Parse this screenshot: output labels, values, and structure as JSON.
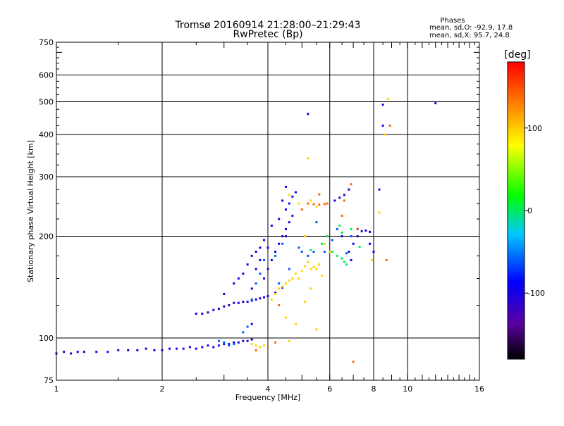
{
  "chart_data": {
    "type": "scatter",
    "title": "Tromsø 20160914 21:28:00–21:29:43",
    "subtitle": "RwPretec (Bp)",
    "xlabel": "Frequency [MHz]",
    "ylabel": "Stationary phase Virtual Height [km]",
    "x_scale": "log",
    "y_scale": "log",
    "xlim": [
      1,
      16
    ],
    "ylim": [
      75,
      750
    ],
    "x_ticks": [
      1,
      2,
      4,
      6,
      8,
      10,
      16
    ],
    "x_tick_labels": [
      "1",
      "2",
      "4",
      "6",
      "8",
      "10",
      "16"
    ],
    "x_grid": [
      2,
      4,
      6,
      8,
      10
    ],
    "y_ticks": [
      75,
      100,
      200,
      300,
      400,
      500,
      600,
      750
    ],
    "y_tick_labels": [
      "75",
      "100",
      "200",
      "300",
      "400",
      "500",
      "600",
      "750"
    ],
    "y_grid": [
      100,
      200,
      300,
      400,
      500,
      600
    ],
    "grid": true,
    "phases_box": {
      "title": "Phases",
      "line_o": "mean, sd,O: -92.9, 17.8",
      "line_x": "mean, sd,X:  95.7, 24.8"
    },
    "colorbar": {
      "label": "[deg]",
      "range": [
        -180,
        180
      ],
      "tick_values": [
        100,
        0,
        -100
      ],
      "tick_labels": [
        "100",
        "0",
        "-100"
      ],
      "colormap": "rainbow (black → purple → blue → cyan → green → yellow → orange → red)"
    },
    "series": [
      {
        "phase": -100,
        "points": [
          [
            1.0,
            90
          ],
          [
            1.05,
            91
          ],
          [
            1.1,
            90
          ],
          [
            1.15,
            91
          ],
          [
            1.2,
            91
          ],
          [
            1.3,
            91
          ],
          [
            1.4,
            91
          ],
          [
            1.5,
            92
          ],
          [
            1.6,
            92
          ],
          [
            1.7,
            92
          ],
          [
            1.8,
            93
          ],
          [
            1.9,
            92
          ],
          [
            2.0,
            92
          ],
          [
            2.1,
            93
          ],
          [
            2.2,
            93
          ],
          [
            2.3,
            93
          ],
          [
            2.4,
            94
          ],
          [
            2.5,
            93
          ],
          [
            2.6,
            94
          ],
          [
            2.7,
            95
          ],
          [
            2.8,
            94
          ],
          [
            2.9,
            95
          ],
          [
            3.0,
            96
          ],
          [
            3.1,
            96
          ],
          [
            3.2,
            97
          ],
          [
            3.3,
            97
          ],
          [
            3.4,
            98
          ],
          [
            3.5,
            98
          ],
          [
            3.6,
            99
          ],
          [
            2.5,
            118
          ],
          [
            2.6,
            118
          ],
          [
            2.7,
            119
          ],
          [
            2.8,
            121
          ],
          [
            2.9,
            122
          ],
          [
            3.0,
            124
          ],
          [
            3.1,
            125
          ],
          [
            3.2,
            127
          ],
          [
            3.3,
            127
          ],
          [
            3.4,
            128
          ],
          [
            3.5,
            128
          ],
          [
            3.6,
            129
          ],
          [
            3.7,
            130
          ],
          [
            3.8,
            131
          ],
          [
            3.9,
            132
          ],
          [
            4.0,
            133
          ],
          [
            4.2,
            136
          ],
          [
            4.4,
            141
          ],
          [
            3.0,
            135
          ],
          [
            3.2,
            145
          ],
          [
            3.4,
            155
          ],
          [
            3.5,
            165
          ],
          [
            3.6,
            175
          ],
          [
            3.7,
            180
          ],
          [
            3.8,
            185
          ],
          [
            3.9,
            150
          ],
          [
            4.0,
            160
          ],
          [
            4.1,
            170
          ],
          [
            4.2,
            180
          ],
          [
            4.3,
            190
          ],
          [
            4.4,
            200
          ],
          [
            4.5,
            210
          ],
          [
            4.6,
            220
          ],
          [
            4.7,
            230
          ],
          [
            3.3,
            150
          ],
          [
            3.6,
            140
          ],
          [
            3.7,
            160
          ],
          [
            4.1,
            215
          ],
          [
            4.3,
            225
          ],
          [
            4.5,
            240
          ],
          [
            4.6,
            250
          ],
          [
            4.7,
            262
          ],
          [
            4.8,
            270
          ],
          [
            4.4,
            255
          ],
          [
            4.5,
            280
          ],
          [
            3.9,
            195
          ],
          [
            4.0,
            185
          ],
          [
            3.8,
            170
          ],
          [
            5.2,
            460
          ],
          [
            8.5,
            490
          ],
          [
            12.0,
            495
          ],
          [
            8.5,
            425
          ],
          [
            7.2,
            200
          ],
          [
            7.0,
            190
          ],
          [
            6.8,
            180
          ],
          [
            6.9,
            170
          ],
          [
            7.2,
            210
          ],
          [
            7.4,
            207
          ],
          [
            7.6,
            208
          ],
          [
            7.8,
            206
          ],
          [
            6.2,
            255
          ],
          [
            6.4,
            260
          ],
          [
            6.6,
            265
          ],
          [
            6.8,
            275
          ],
          [
            8.3,
            275
          ],
          [
            7.8,
            190
          ],
          [
            8.0,
            180
          ],
          [
            6.5,
            200
          ],
          [
            3.6,
            110
          ],
          [
            4.5,
            200
          ]
        ]
      },
      {
        "phase": -60,
        "points": [
          [
            2.9,
            98
          ],
          [
            3.0,
            97
          ],
          [
            3.1,
            95
          ],
          [
            3.2,
            96
          ],
          [
            3.4,
            104
          ],
          [
            3.5,
            108
          ],
          [
            3.6,
            130
          ],
          [
            3.7,
            145
          ],
          [
            3.8,
            155
          ],
          [
            3.9,
            170
          ],
          [
            4.2,
            175
          ],
          [
            4.4,
            190
          ],
          [
            4.6,
            160
          ],
          [
            4.9,
            185
          ],
          [
            5.0,
            180
          ],
          [
            5.2,
            175
          ],
          [
            5.4,
            180
          ],
          [
            5.8,
            180
          ],
          [
            6.1,
            195
          ],
          [
            6.3,
            210
          ],
          [
            6.9,
            200
          ],
          [
            6.7,
            178
          ],
          [
            5.5,
            220
          ],
          [
            4.3,
            145
          ]
        ]
      },
      {
        "phase": 0,
        "points": [
          [
            5.7,
            190
          ],
          [
            6.1,
            180
          ],
          [
            6.3,
            175
          ],
          [
            6.5,
            172
          ],
          [
            6.6,
            168
          ],
          [
            6.7,
            165
          ],
          [
            6.4,
            215
          ],
          [
            6.5,
            205
          ],
          [
            6.9,
            210
          ],
          [
            7.3,
            186
          ],
          [
            5.3,
            182
          ],
          [
            5.9,
            200
          ]
        ]
      },
      {
        "phase": 95,
        "points": [
          [
            3.6,
            96
          ],
          [
            3.7,
            95
          ],
          [
            3.8,
            94
          ],
          [
            3.9,
            95
          ],
          [
            4.1,
            130
          ],
          [
            4.2,
            135
          ],
          [
            4.3,
            140
          ],
          [
            4.4,
            142
          ],
          [
            4.5,
            145
          ],
          [
            4.6,
            148
          ],
          [
            4.7,
            150
          ],
          [
            4.8,
            155
          ],
          [
            4.9,
            150
          ],
          [
            5.0,
            158
          ],
          [
            5.1,
            163
          ],
          [
            5.2,
            168
          ],
          [
            5.3,
            160
          ],
          [
            5.4,
            162
          ],
          [
            5.5,
            160
          ],
          [
            5.6,
            165
          ],
          [
            5.3,
            140
          ],
          [
            5.1,
            200
          ],
          [
            5.8,
            190
          ],
          [
            6.0,
            180
          ],
          [
            8.8,
            510
          ],
          [
            5.2,
            340
          ],
          [
            4.6,
            265
          ],
          [
            4.9,
            250
          ],
          [
            5.3,
            255
          ],
          [
            5.5,
            245
          ],
          [
            4.5,
            115
          ],
          [
            4.8,
            110
          ],
          [
            5.5,
            106
          ],
          [
            4.6,
            98
          ],
          [
            5.1,
            128
          ],
          [
            5.7,
            153
          ],
          [
            8.6,
            400
          ],
          [
            8.3,
            235
          ],
          [
            7.9,
            170
          ]
        ]
      },
      {
        "phase": 140,
        "points": [
          [
            4.2,
            97
          ],
          [
            5.2,
            250
          ],
          [
            5.4,
            249
          ],
          [
            5.6,
            248
          ],
          [
            5.8,
            249
          ],
          [
            5.9,
            250
          ],
          [
            6.5,
            230
          ],
          [
            6.9,
            285
          ],
          [
            5.0,
            240
          ],
          [
            7.2,
            210
          ],
          [
            8.9,
            425
          ],
          [
            7.0,
            85
          ],
          [
            6.6,
            255
          ],
          [
            5.6,
            266
          ],
          [
            8.7,
            170
          ],
          [
            4.3,
            125
          ],
          [
            3.7,
            92
          ]
        ]
      }
    ]
  }
}
